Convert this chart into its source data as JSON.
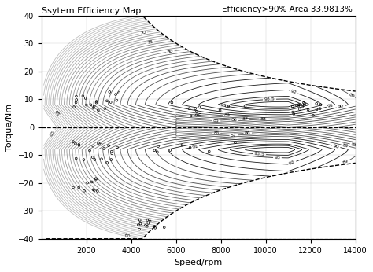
{
  "title": "Ssytem Efficiency Map",
  "subtitle": "Efficiency>90% Area 33.9813%",
  "xlabel": "Speed/rpm",
  "ylabel": "Torque/Nm",
  "xlim": [
    0,
    14000
  ],
  "ylim": [
    -40,
    40
  ],
  "xticks": [
    2000,
    4000,
    6000,
    8000,
    10000,
    12000,
    14000
  ],
  "yticks": [
    -40,
    -30,
    -20,
    -10,
    0,
    10,
    20,
    30,
    40
  ],
  "background_color": "#ffffff"
}
